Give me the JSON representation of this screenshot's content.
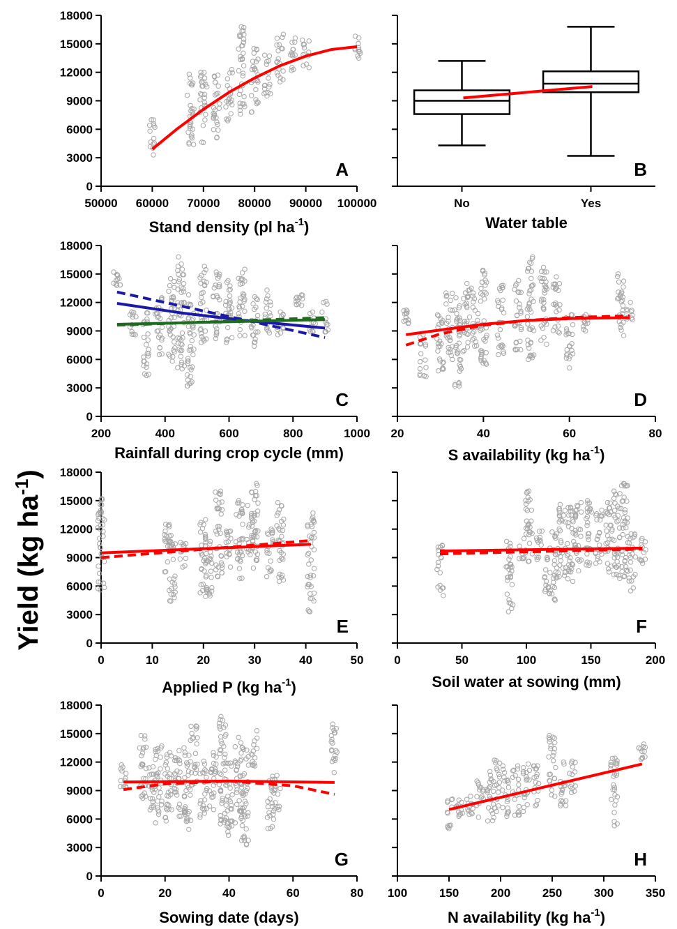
{
  "y_axis_label": "Yield (kg ha",
  "y_axis_label_sup": "-1",
  "y_axis_label_end": ")",
  "colors": {
    "points": "#a6a6a6",
    "fit": "#ff0000",
    "blue": "#1a1aa6",
    "green": "#1f6b1f",
    "box": "#000000"
  },
  "chart_data": [
    {
      "id": "A",
      "letter": "A",
      "type": "scatter",
      "xlabel": "Stand density (pl ha",
      "xlabel_sup": "-1",
      "xlabel_end": ")",
      "xlim": [
        50000,
        100000
      ],
      "xticks": [
        50000,
        60000,
        70000,
        80000,
        90000,
        100000
      ],
      "ylim": [
        0,
        18000
      ],
      "yticks": [
        0,
        3000,
        6000,
        9000,
        12000,
        15000,
        18000
      ],
      "ytick_labels": true,
      "clusters": [
        {
          "x": 60000,
          "ymin": 3300,
          "ymax": 7000
        },
        {
          "x": 67500,
          "ymin": 4400,
          "ymax": 11800
        },
        {
          "x": 70000,
          "ymin": 4600,
          "ymax": 12000
        },
        {
          "x": 72500,
          "ymin": 5100,
          "ymax": 11700
        },
        {
          "x": 75000,
          "ymin": 6900,
          "ymax": 12300
        },
        {
          "x": 77500,
          "ymin": 7600,
          "ymax": 16800
        },
        {
          "x": 80000,
          "ymin": 7800,
          "ymax": 14500
        },
        {
          "x": 82500,
          "ymin": 9500,
          "ymax": 13800
        },
        {
          "x": 85000,
          "ymin": 11000,
          "ymax": 16000
        },
        {
          "x": 87500,
          "ymin": 12200,
          "ymax": 15600
        },
        {
          "x": 90000,
          "ymin": 12500,
          "ymax": 15400
        },
        {
          "x": 100000,
          "ymin": 13500,
          "ymax": 15800
        }
      ],
      "lines": [
        {
          "color": "fit",
          "style": "solid",
          "x": [
            60000,
            65000,
            70000,
            75000,
            80000,
            85000,
            90000,
            95000,
            100000
          ],
          "y": [
            3900,
            6100,
            8100,
            9900,
            11400,
            12700,
            13700,
            14400,
            14700
          ]
        }
      ]
    },
    {
      "id": "B",
      "letter": "B",
      "type": "box",
      "xlabel": "Water table",
      "xlabel_sup": "",
      "xlabel_end": "",
      "categories": [
        "No",
        "Yes"
      ],
      "ylim": [
        0,
        18000
      ],
      "yticks": [
        0,
        3000,
        6000,
        9000,
        12000,
        15000,
        18000
      ],
      "ytick_labels": false,
      "boxes": [
        {
          "category": "No",
          "min": 4300,
          "q1": 7600,
          "median": 9000,
          "q3": 10100,
          "max": 13200
        },
        {
          "category": "Yes",
          "min": 3200,
          "q1": 9900,
          "median": 10800,
          "q3": 12100,
          "max": 16800
        }
      ],
      "trend": {
        "color": "fit",
        "y": [
          9300,
          10500
        ]
      }
    },
    {
      "id": "C",
      "letter": "C",
      "type": "scatter",
      "xlabel": "Rainfall during crop cycle (mm)",
      "xlabel_sup": "",
      "xlabel_end": "",
      "xlim": [
        200,
        1000
      ],
      "xticks": [
        200,
        400,
        600,
        800,
        1000
      ],
      "ylim": [
        0,
        18000
      ],
      "yticks": [
        0,
        3000,
        6000,
        9000,
        12000,
        15000,
        18000
      ],
      "ytick_labels": true,
      "clusters": [
        {
          "x": 250,
          "ymin": 13800,
          "ymax": 15200
        },
        {
          "x": 300,
          "ymin": 8600,
          "ymax": 11000
        },
        {
          "x": 340,
          "ymin": 4300,
          "ymax": 10900
        },
        {
          "x": 380,
          "ymin": 6500,
          "ymax": 12500
        },
        {
          "x": 420,
          "ymin": 5800,
          "ymax": 14500
        },
        {
          "x": 450,
          "ymin": 5000,
          "ymax": 16800
        },
        {
          "x": 480,
          "ymin": 3200,
          "ymax": 12800
        },
        {
          "x": 520,
          "ymin": 7800,
          "ymax": 15800
        },
        {
          "x": 560,
          "ymin": 8200,
          "ymax": 15200
        },
        {
          "x": 600,
          "ymin": 7800,
          "ymax": 14300
        },
        {
          "x": 640,
          "ymin": 8500,
          "ymax": 15500
        },
        {
          "x": 680,
          "ymin": 7400,
          "ymax": 12600
        },
        {
          "x": 720,
          "ymin": 8800,
          "ymax": 13300
        },
        {
          "x": 760,
          "ymin": 8600,
          "ymax": 11000
        },
        {
          "x": 820,
          "ymin": 11700,
          "ymax": 12800
        },
        {
          "x": 860,
          "ymin": 8900,
          "ymax": 11000
        },
        {
          "x": 900,
          "ymin": 8900,
          "ymax": 12100
        }
      ],
      "lines": [
        {
          "color": "blue",
          "style": "dashed",
          "x": [
            250,
            900
          ],
          "y": [
            13100,
            8300
          ]
        },
        {
          "color": "blue",
          "style": "solid",
          "x": [
            250,
            450,
            650,
            900
          ],
          "y": [
            11900,
            10900,
            10100,
            9300
          ]
        },
        {
          "color": "green",
          "style": "solid",
          "x": [
            250,
            900
          ],
          "y": [
            9700,
            10200
          ]
        },
        {
          "color": "green",
          "style": "dashed",
          "x": [
            250,
            900
          ],
          "y": [
            9600,
            10400
          ]
        }
      ]
    },
    {
      "id": "D",
      "letter": "D",
      "type": "scatter",
      "xlabel": "S availability (kg ha",
      "xlabel_sup": "-1",
      "xlabel_end": ")",
      "xlim": [
        20,
        80
      ],
      "xticks": [
        20,
        40,
        60,
        80
      ],
      "ylim": [
        0,
        18000
      ],
      "yticks": [
        0,
        3000,
        6000,
        9000,
        12000,
        15000,
        18000
      ],
      "ytick_labels": false,
      "clusters": [
        {
          "x": 22,
          "ymin": 9800,
          "ymax": 11200
        },
        {
          "x": 26,
          "ymin": 4200,
          "ymax": 8600
        },
        {
          "x": 30,
          "ymin": 4800,
          "ymax": 10700
        },
        {
          "x": 32,
          "ymin": 6000,
          "ymax": 13000
        },
        {
          "x": 34,
          "ymin": 3200,
          "ymax": 12500
        },
        {
          "x": 36,
          "ymin": 6800,
          "ymax": 14000
        },
        {
          "x": 38,
          "ymin": 7400,
          "ymax": 13500
        },
        {
          "x": 40,
          "ymin": 5500,
          "ymax": 15400
        },
        {
          "x": 44,
          "ymin": 6500,
          "ymax": 13800
        },
        {
          "x": 48,
          "ymin": 7000,
          "ymax": 14300
        },
        {
          "x": 51,
          "ymin": 6000,
          "ymax": 16800
        },
        {
          "x": 54,
          "ymin": 7600,
          "ymax": 15700
        },
        {
          "x": 57,
          "ymin": 8800,
          "ymax": 14700
        },
        {
          "x": 60,
          "ymin": 5100,
          "ymax": 10700
        },
        {
          "x": 64,
          "ymin": 9000,
          "ymax": 10700
        },
        {
          "x": 72,
          "ymin": 8500,
          "ymax": 15000
        },
        {
          "x": 74,
          "ymin": 10200,
          "ymax": 12000
        }
      ],
      "lines": [
        {
          "color": "fit",
          "style": "solid",
          "x": [
            22,
            30,
            40,
            50,
            60,
            74
          ],
          "y": [
            8600,
            9100,
            9700,
            10100,
            10300,
            10400
          ]
        },
        {
          "color": "fit",
          "style": "dashed",
          "x": [
            22,
            30,
            40,
            50,
            60,
            74
          ],
          "y": [
            7500,
            8700,
            9600,
            10100,
            10400,
            10600
          ]
        }
      ]
    },
    {
      "id": "E",
      "letter": "E",
      "type": "scatter",
      "xlabel": "Applied P (kg ha",
      "xlabel_sup": "-1",
      "xlabel_end": ")",
      "xlim": [
        0,
        50
      ],
      "xticks": [
        0,
        10,
        20,
        30,
        40,
        50
      ],
      "ylim": [
        0,
        18000
      ],
      "yticks": [
        0,
        3000,
        6000,
        9000,
        12000,
        15000,
        18000
      ],
      "ytick_labels": true,
      "clusters": [
        {
          "x": 0,
          "ymin": 5600,
          "ymax": 15200
        },
        {
          "x": 13,
          "ymin": 7500,
          "ymax": 12500
        },
        {
          "x": 14,
          "ymin": 4400,
          "ymax": 10700
        },
        {
          "x": 16,
          "ymin": 8000,
          "ymax": 10600
        },
        {
          "x": 20,
          "ymin": 5300,
          "ymax": 13000
        },
        {
          "x": 21,
          "ymin": 4900,
          "ymax": 10700
        },
        {
          "x": 23,
          "ymin": 7000,
          "ymax": 16000
        },
        {
          "x": 25,
          "ymin": 8000,
          "ymax": 11800
        },
        {
          "x": 27,
          "ymin": 6800,
          "ymax": 15000
        },
        {
          "x": 29,
          "ymin": 9300,
          "ymax": 14500
        },
        {
          "x": 30,
          "ymin": 7900,
          "ymax": 16800
        },
        {
          "x": 33,
          "ymin": 7000,
          "ymax": 12000
        },
        {
          "x": 35,
          "ymin": 6500,
          "ymax": 14800
        },
        {
          "x": 41,
          "ymin": 3300,
          "ymax": 13700
        }
      ],
      "lines": [
        {
          "color": "fit",
          "style": "solid",
          "x": [
            0,
            41
          ],
          "y": [
            9500,
            10400
          ]
        },
        {
          "color": "fit",
          "style": "dashed",
          "x": [
            0,
            41
          ],
          "y": [
            9000,
            10800
          ]
        }
      ]
    },
    {
      "id": "F",
      "letter": "F",
      "type": "scatter",
      "xlabel": "Soil water at sowing (mm)",
      "xlabel_sup": "",
      "xlabel_end": "",
      "xlim": [
        0,
        200
      ],
      "xticks": [
        0,
        50,
        100,
        150,
        200
      ],
      "ylim": [
        0,
        18000
      ],
      "yticks": [
        0,
        3000,
        6000,
        9000,
        12000,
        15000,
        18000
      ],
      "ytick_labels": false,
      "clusters": [
        {
          "x": 33,
          "ymin": 5000,
          "ymax": 10300
        },
        {
          "x": 87,
          "ymin": 3300,
          "ymax": 10700
        },
        {
          "x": 97,
          "ymin": 8900,
          "ymax": 11000
        },
        {
          "x": 102,
          "ymin": 8600,
          "ymax": 16000
        },
        {
          "x": 110,
          "ymin": 8800,
          "ymax": 11800
        },
        {
          "x": 116,
          "ymin": 5200,
          "ymax": 10000
        },
        {
          "x": 122,
          "ymin": 4500,
          "ymax": 11700
        },
        {
          "x": 128,
          "ymin": 7000,
          "ymax": 14600
        },
        {
          "x": 134,
          "ymin": 6500,
          "ymax": 14300
        },
        {
          "x": 140,
          "ymin": 7600,
          "ymax": 14800
        },
        {
          "x": 148,
          "ymin": 8200,
          "ymax": 15000
        },
        {
          "x": 156,
          "ymin": 8400,
          "ymax": 14000
        },
        {
          "x": 164,
          "ymin": 7500,
          "ymax": 14800
        },
        {
          "x": 170,
          "ymin": 6800,
          "ymax": 16000
        },
        {
          "x": 176,
          "ymin": 7000,
          "ymax": 16800
        },
        {
          "x": 182,
          "ymin": 5500,
          "ymax": 11500
        },
        {
          "x": 190,
          "ymin": 8400,
          "ymax": 11000
        }
      ],
      "lines": [
        {
          "color": "fit",
          "style": "solid",
          "x": [
            33,
            190
          ],
          "y": [
            9700,
            10000
          ]
        },
        {
          "color": "fit",
          "style": "dashed",
          "x": [
            33,
            190
          ],
          "y": [
            9400,
            9900
          ]
        }
      ]
    },
    {
      "id": "G",
      "letter": "G",
      "type": "scatter",
      "xlabel": "Sowing date (days)",
      "xlabel_sup": "",
      "xlabel_end": "",
      "xlim": [
        0,
        80
      ],
      "xticks": [
        0,
        20,
        40,
        60,
        80
      ],
      "ylim": [
        0,
        18000
      ],
      "yticks": [
        0,
        3000,
        6000,
        9000,
        12000,
        15000,
        18000
      ],
      "ytick_labels": true,
      "clusters": [
        {
          "x": 7,
          "ymin": 9300,
          "ymax": 11700
        },
        {
          "x": 13,
          "ymin": 8200,
          "ymax": 14800
        },
        {
          "x": 16,
          "ymin": 5600,
          "ymax": 11500
        },
        {
          "x": 18,
          "ymin": 6500,
          "ymax": 13700
        },
        {
          "x": 21,
          "ymin": 5800,
          "ymax": 13000
        },
        {
          "x": 24,
          "ymin": 6300,
          "ymax": 13200
        },
        {
          "x": 27,
          "ymin": 4900,
          "ymax": 13500
        },
        {
          "x": 29,
          "ymin": 9600,
          "ymax": 15800
        },
        {
          "x": 32,
          "ymin": 6200,
          "ymax": 12100
        },
        {
          "x": 35,
          "ymin": 7000,
          "ymax": 13000
        },
        {
          "x": 38,
          "ymin": 5500,
          "ymax": 16800
        },
        {
          "x": 40,
          "ymin": 4300,
          "ymax": 11900
        },
        {
          "x": 43,
          "ymin": 5600,
          "ymax": 14600
        },
        {
          "x": 45,
          "ymin": 3300,
          "ymax": 13500
        },
        {
          "x": 48,
          "ymin": 11600,
          "ymax": 15300
        },
        {
          "x": 53,
          "ymin": 5000,
          "ymax": 10500
        },
        {
          "x": 55,
          "ymin": 7000,
          "ymax": 10600
        },
        {
          "x": 73,
          "ymin": 10900,
          "ymax": 16000
        }
      ],
      "lines": [
        {
          "color": "fit",
          "style": "solid",
          "x": [
            7,
            40,
            73
          ],
          "y": [
            9900,
            10000,
            9850
          ]
        },
        {
          "color": "fit",
          "style": "dashed",
          "x": [
            7,
            20,
            40,
            60,
            73
          ],
          "y": [
            9100,
            9700,
            10000,
            9500,
            8600
          ]
        }
      ]
    },
    {
      "id": "H",
      "letter": "H",
      "type": "scatter",
      "xlabel": "N availability (kg ha",
      "xlabel_sup": "-1",
      "xlabel_end": ")",
      "xlim": [
        100,
        350
      ],
      "xticks": [
        100,
        150,
        200,
        250,
        300,
        350
      ],
      "ylim": [
        0,
        18000
      ],
      "yticks": [
        0,
        3000,
        6000,
        9000,
        12000,
        15000,
        18000
      ],
      "ytick_labels": false,
      "clusters": [
        {
          "x": 150,
          "ymin": 5000,
          "ymax": 8100
        },
        {
          "x": 160,
          "ymin": 6300,
          "ymax": 8000
        },
        {
          "x": 170,
          "ymin": 6500,
          "ymax": 8400
        },
        {
          "x": 180,
          "ymin": 6200,
          "ymax": 10000
        },
        {
          "x": 190,
          "ymin": 5800,
          "ymax": 11000
        },
        {
          "x": 196,
          "ymin": 6800,
          "ymax": 12200
        },
        {
          "x": 205,
          "ymin": 6300,
          "ymax": 11600
        },
        {
          "x": 215,
          "ymin": 6400,
          "ymax": 11600
        },
        {
          "x": 225,
          "ymin": 6800,
          "ymax": 11800
        },
        {
          "x": 235,
          "ymin": 7400,
          "ymax": 11600
        },
        {
          "x": 250,
          "ymin": 8400,
          "ymax": 14800
        },
        {
          "x": 260,
          "ymin": 7400,
          "ymax": 12000
        },
        {
          "x": 270,
          "ymin": 8800,
          "ymax": 12100
        },
        {
          "x": 310,
          "ymin": 5300,
          "ymax": 12400
        },
        {
          "x": 337,
          "ymin": 12300,
          "ymax": 13900
        }
      ],
      "lines": [
        {
          "color": "fit",
          "style": "solid",
          "x": [
            150,
            337
          ],
          "y": [
            7000,
            11800
          ]
        }
      ]
    }
  ]
}
